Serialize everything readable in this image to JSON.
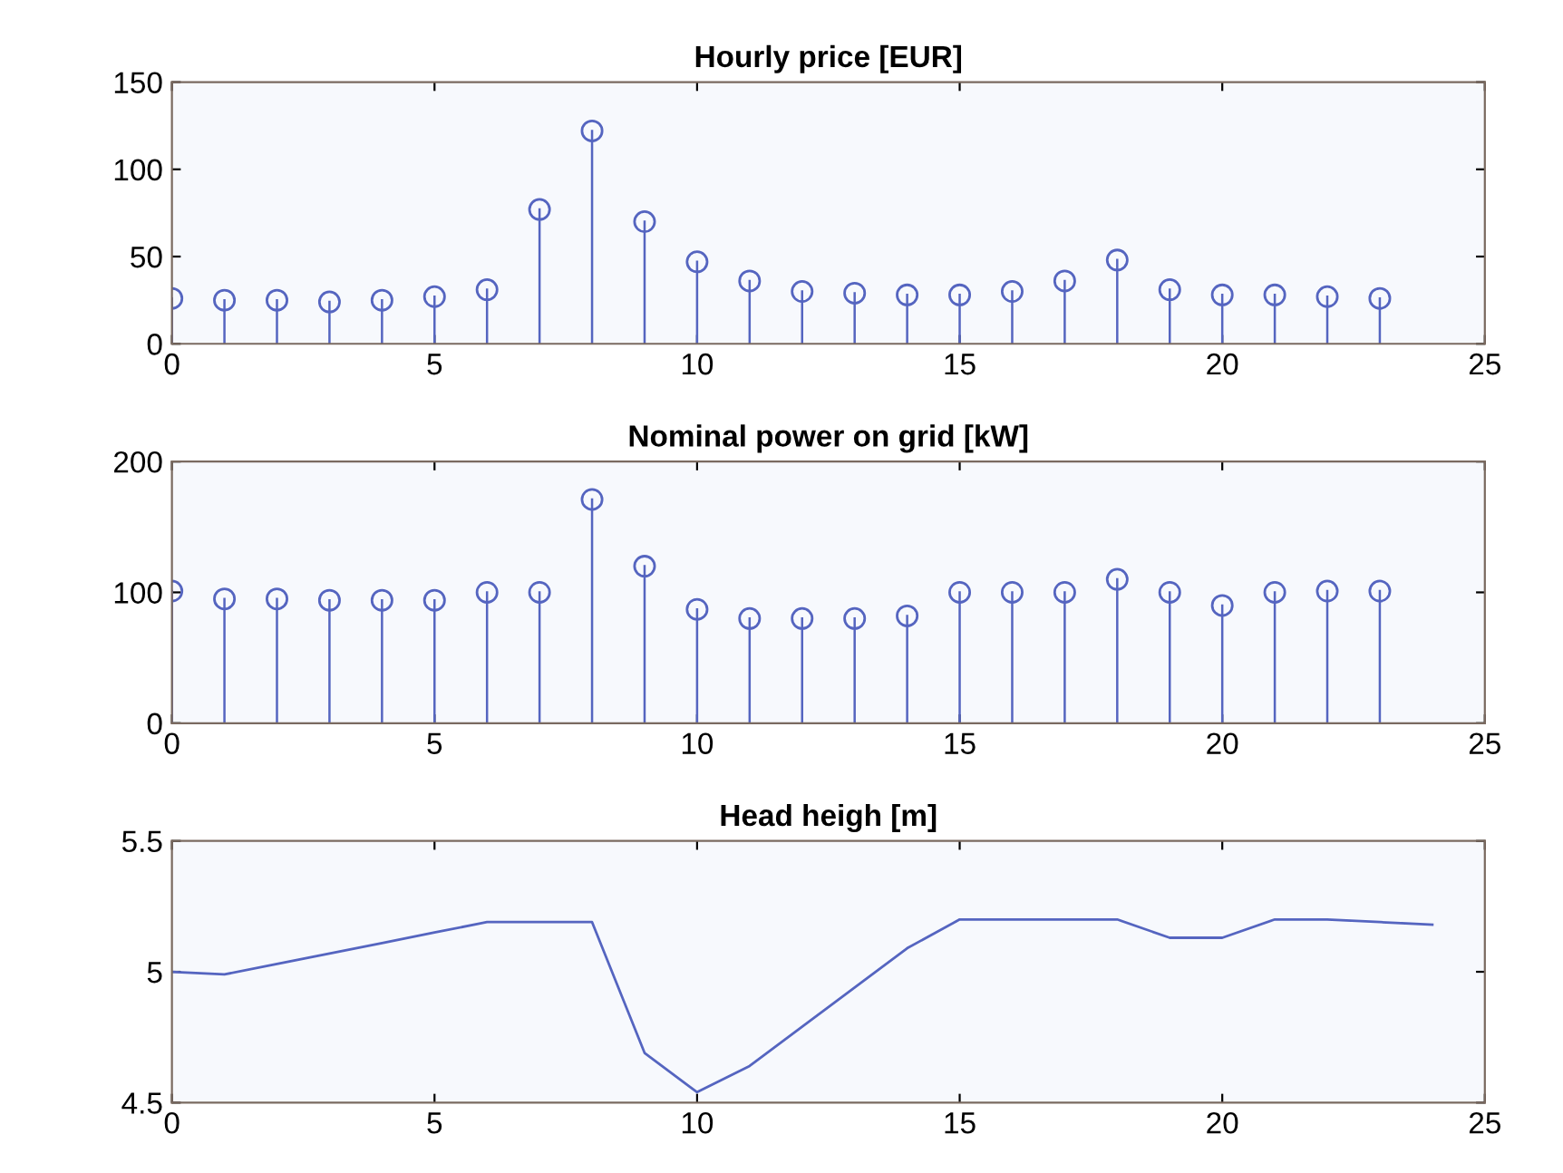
{
  "chart_data": [
    {
      "type": "lollipop",
      "title": "Hourly price [EUR]",
      "x": [
        0,
        1,
        2,
        3,
        4,
        5,
        6,
        7,
        8,
        9,
        10,
        11,
        12,
        13,
        14,
        15,
        16,
        17,
        18,
        19,
        20,
        21,
        22,
        23
      ],
      "values": [
        26,
        25,
        25,
        24,
        25,
        27,
        31,
        77,
        122,
        70,
        47,
        36,
        30,
        29,
        28,
        28,
        30,
        36,
        48,
        31,
        28,
        28,
        27,
        26
      ],
      "color": "#5565c0",
      "marker": "circle",
      "xlim": [
        0,
        25
      ],
      "xticks": [
        0,
        5,
        10,
        15,
        20,
        25
      ],
      "ylim": [
        0,
        150
      ],
      "yticks": [
        0,
        50,
        100,
        150
      ]
    },
    {
      "type": "lollipop",
      "title": "Nominal power on grid [kW]",
      "x": [
        0,
        1,
        2,
        3,
        4,
        5,
        6,
        7,
        8,
        9,
        10,
        11,
        12,
        13,
        14,
        15,
        16,
        17,
        18,
        19,
        20,
        21,
        22,
        23
      ],
      "values": [
        101,
        95,
        95,
        94,
        94,
        94,
        100,
        100,
        171,
        120,
        87,
        80,
        80,
        80,
        82,
        100,
        100,
        100,
        110,
        100,
        90,
        100,
        101,
        101
      ],
      "color": "#5565c0",
      "marker": "circle",
      "xlim": [
        0,
        25
      ],
      "xticks": [
        0,
        5,
        10,
        15,
        20,
        25
      ],
      "ylim": [
        0,
        200
      ],
      "yticks": [
        0,
        100,
        200
      ]
    },
    {
      "type": "line",
      "title": "Head heigh [m]",
      "x": [
        0,
        1,
        2,
        3,
        4,
        5,
        6,
        7,
        8,
        9,
        10,
        11,
        12,
        13,
        14,
        15,
        16,
        17,
        18,
        19,
        20,
        21,
        22,
        23,
        24
      ],
      "values": [
        5.0,
        4.99,
        5.03,
        5.07,
        5.11,
        5.15,
        5.19,
        5.19,
        5.19,
        4.69,
        4.54,
        4.64,
        4.79,
        4.94,
        5.09,
        5.2,
        5.2,
        5.2,
        5.2,
        5.13,
        5.13,
        5.2,
        5.2,
        5.19,
        5.18
      ],
      "color": "#5565c0",
      "xlim": [
        0,
        25
      ],
      "xticks": [
        0,
        5,
        10,
        15,
        20,
        25
      ],
      "ylim": [
        4.5,
        5.5
      ],
      "yticks": [
        4.5,
        5,
        5.5
      ]
    }
  ]
}
